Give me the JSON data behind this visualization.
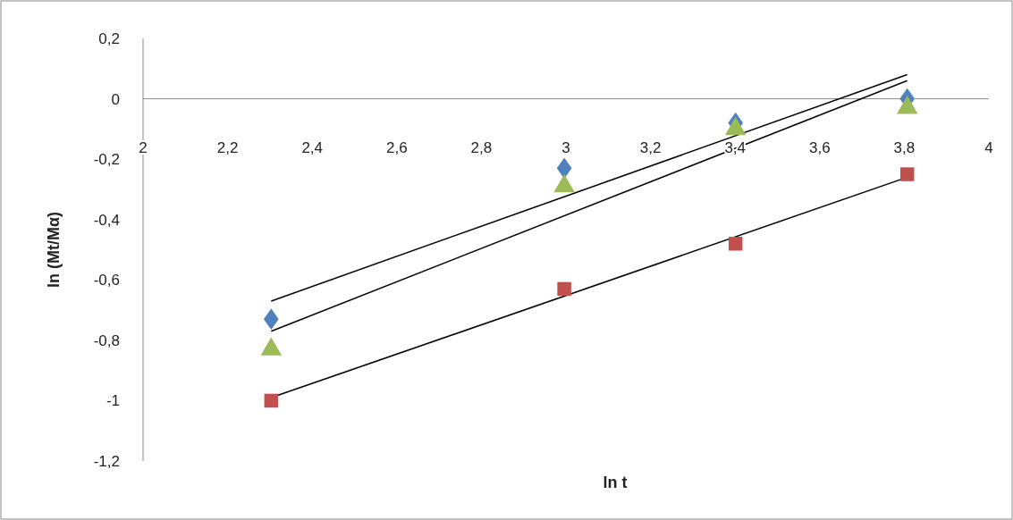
{
  "chart_data": {
    "type": "scatter",
    "xlabel": "ln t",
    "ylabel": "ln (Mt/Mα)",
    "xlim": [
      2,
      4
    ],
    "ylim": [
      -1.2,
      0.2
    ],
    "xticks": [
      2,
      {
        "value": 2.2,
        "label": "2,2"
      },
      {
        "value": 2.4,
        "label": "2,4"
      },
      {
        "value": 2.6,
        "label": "2,6"
      },
      {
        "value": 2.8,
        "label": "2,8"
      },
      3,
      {
        "value": 3.2,
        "label": "3,2"
      },
      {
        "value": 3.4,
        "label": "3,4"
      },
      {
        "value": 3.6,
        "label": "3,6"
      },
      {
        "value": 3.8,
        "label": "3,8"
      },
      4
    ],
    "yticks": [
      {
        "value": -1.2,
        "label": "-1,2"
      },
      -1,
      {
        "value": -0.8,
        "label": "-0,8"
      },
      {
        "value": -0.6,
        "label": "-0,6"
      },
      {
        "value": -0.4,
        "label": "-0,4"
      },
      {
        "value": -0.2,
        "label": "-0,2"
      },
      0,
      {
        "value": 0.2,
        "label": "0,2"
      }
    ],
    "series": [
      {
        "marker": "diamond",
        "color": "#4f81bd",
        "x": [
          2.303,
          2.996,
          3.401,
          3.807
        ],
        "values": [
          -0.73,
          -0.23,
          -0.08,
          0.0
        ]
      },
      {
        "marker": "square",
        "color": "#c0504d",
        "x": [
          2.303,
          2.996,
          3.401,
          3.807
        ],
        "values": [
          -1.0,
          -0.63,
          -0.48,
          -0.25
        ]
      },
      {
        "marker": "triangle",
        "color": "#9bbb59",
        "x": [
          2.303,
          2.996,
          3.401,
          3.807
        ],
        "values": [
          -0.83,
          -0.29,
          -0.1,
          -0.03
        ]
      },
      {
        "type": "line",
        "color": "#000000",
        "x": [
          2.303,
          3.807
        ],
        "values": [
          -0.67,
          0.08
        ]
      },
      {
        "type": "line",
        "color": "#000000",
        "x": [
          2.303,
          3.807
        ],
        "values": [
          -0.77,
          0.06
        ]
      },
      {
        "type": "line",
        "color": "#000000",
        "x": [
          2.303,
          3.807
        ],
        "values": [
          -0.99,
          -0.26
        ]
      }
    ]
  }
}
